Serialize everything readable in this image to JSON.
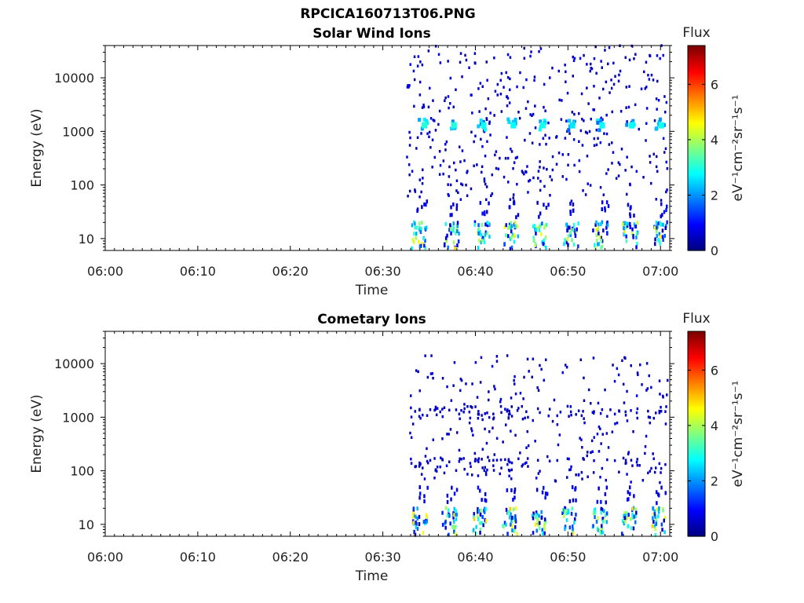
{
  "figure_title": "RPCICA160713T06.PNG",
  "chart_data": [
    {
      "type": "heatmap",
      "title": "Solar Wind Ions",
      "xlabel": "Time",
      "ylabel": "Energy (eV)",
      "x_ticks": [
        "06:00",
        "06:10",
        "06:20",
        "06:30",
        "06:40",
        "06:50",
        "07:00"
      ],
      "x_range": [
        "06:00",
        "07:01"
      ],
      "y_scale": "log",
      "y_ticks": [
        10,
        100,
        1000,
        10000
      ],
      "y_range": [
        6,
        40000
      ],
      "colorbar": {
        "label": "Flux",
        "units": "eV⁻¹cm⁻²sr⁻¹s⁻¹",
        "ticks": [
          0,
          2,
          4,
          6
        ],
        "range": [
          0,
          7.4
        ],
        "colormap": "jet"
      },
      "data_start": "06:32.5",
      "highlights": [
        {
          "time_min": 34.2,
          "energy_ev": 1300,
          "flux": 3.0
        },
        {
          "time_min": 37.4,
          "energy_ev": 1300,
          "flux": 3.0
        },
        {
          "time_min": 40.6,
          "energy_ev": 1300,
          "flux": 2.9
        },
        {
          "time_min": 43.8,
          "energy_ev": 1300,
          "flux": 2.8
        },
        {
          "time_min": 47.0,
          "energy_ev": 1300,
          "flux": 2.9
        },
        {
          "time_min": 50.2,
          "energy_ev": 1300,
          "flux": 2.6
        },
        {
          "time_min": 53.4,
          "energy_ev": 1300,
          "flux": 2.8
        },
        {
          "time_min": 56.6,
          "energy_ev": 1300,
          "flux": 2.8
        },
        {
          "time_min": 59.8,
          "energy_ev": 1300,
          "flux": 2.9
        }
      ],
      "low_energy_bursts_min": [
        33.5,
        37.0,
        40.3,
        43.5,
        46.6,
        49.9,
        53.1,
        56.3,
        59.5
      ]
    },
    {
      "type": "heatmap",
      "title": "Cometary Ions",
      "xlabel": "Time",
      "ylabel": "Energy (eV)",
      "x_ticks": [
        "06:00",
        "06:10",
        "06:20",
        "06:30",
        "06:40",
        "06:50",
        "07:00"
      ],
      "x_range": [
        "06:00",
        "07:01"
      ],
      "y_scale": "log",
      "y_ticks": [
        10,
        100,
        1000,
        10000
      ],
      "y_range": [
        6,
        40000
      ],
      "colorbar": {
        "label": "Flux",
        "units": "eV⁻¹cm⁻²sr⁻¹s⁻¹",
        "ticks": [
          0,
          2,
          4,
          6
        ],
        "range": [
          0,
          7.4
        ],
        "colormap": "jet"
      },
      "data_start": "06:32.5",
      "low_energy_bursts_min": [
        33.6,
        36.8,
        40.1,
        43.3,
        46.5,
        49.8,
        53.0,
        56.2,
        59.4
      ],
      "burst_peak_flux": 4.6
    }
  ]
}
